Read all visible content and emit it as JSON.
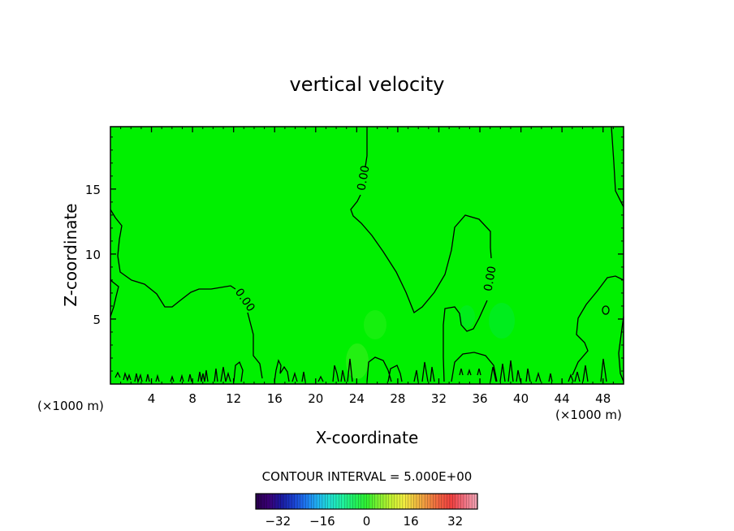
{
  "chart_data": {
    "type": "heatmap",
    "title": "vertical velocity",
    "xlabel": "X-coordinate",
    "ylabel": "Z-coordinate",
    "x_unit_left": "(×1000 m)",
    "x_unit_right": "(×1000 m)",
    "xlim": [
      0,
      50
    ],
    "ylim": [
      0,
      19.8
    ],
    "xticks": [
      4,
      8,
      12,
      16,
      20,
      24,
      28,
      32,
      36,
      40,
      44,
      48
    ],
    "yticks": [
      5,
      10,
      15
    ],
    "grid": false,
    "field_value_dominant": 0,
    "contour_label": "0.00",
    "contour_interval_text": "CONTOUR INTERVAL = 5.000E+00",
    "colorbar": {
      "range": [
        -40,
        40
      ],
      "ticks": [
        -32,
        -16,
        0,
        16,
        32
      ],
      "colors": [
        "#2a0050",
        "#3a0078",
        "#1a1aa0",
        "#1a40d0",
        "#1e78f0",
        "#20b4f0",
        "#20e0d0",
        "#20f0a0",
        "#22f060",
        "#30f030",
        "#80f030",
        "#c0f030",
        "#f0f040",
        "#f0c040",
        "#f09040",
        "#f06040",
        "#f04040",
        "#f07080",
        "#f0a0b0"
      ]
    }
  }
}
